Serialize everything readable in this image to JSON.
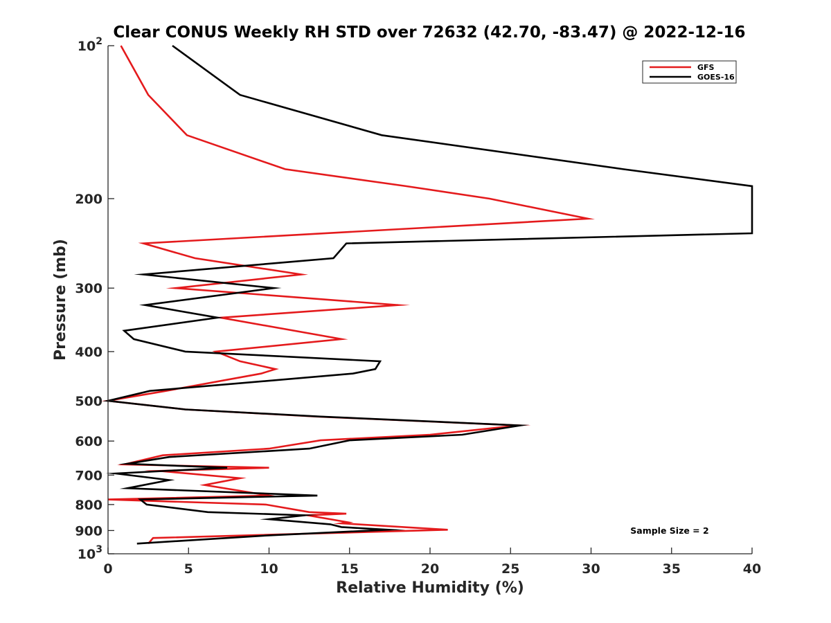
{
  "chart_data": {
    "type": "line",
    "title": "Clear CONUS Weekly RH STD over 72632 (42.70, -83.47) @ 2022-12-16",
    "xlabel": "Relative Humidity (%)",
    "ylabel": "Pressure (mb)",
    "xlim": [
      0,
      40
    ],
    "ylim": [
      100,
      1000
    ],
    "y_scale": "log",
    "y_reversed": true,
    "x_ticks": [
      0,
      5,
      10,
      15,
      20,
      25,
      30,
      35,
      40
    ],
    "y_ticks": [
      {
        "value": 100,
        "base": "10",
        "exp": "2"
      },
      {
        "value": 200,
        "label": "200"
      },
      {
        "value": 300,
        "label": "300"
      },
      {
        "value": 400,
        "label": "400"
      },
      {
        "value": 500,
        "label": "500"
      },
      {
        "value": 600,
        "label": "600"
      },
      {
        "value": 700,
        "label": "700"
      },
      {
        "value": 800,
        "label": "800"
      },
      {
        "value": 900,
        "label": "900"
      },
      {
        "value": 1000,
        "base": "10",
        "exp": "3"
      }
    ],
    "grid": false,
    "legend_position": "top-right",
    "series": [
      {
        "name": "GFS",
        "color": "#e41a1c",
        "points": [
          [
            0.8,
            100
          ],
          [
            2.5,
            125
          ],
          [
            4.9,
            150
          ],
          [
            11,
            175
          ],
          [
            18.5,
            189
          ],
          [
            23.7,
            200
          ],
          [
            29.8,
            219
          ],
          [
            2.2,
            245
          ],
          [
            5.4,
            262
          ],
          [
            12,
            282
          ],
          [
            4.2,
            300
          ],
          [
            18,
            324
          ],
          [
            7,
            343
          ],
          [
            14.5,
            378
          ],
          [
            6.7,
            400
          ],
          [
            8.2,
            418
          ],
          [
            10.4,
            433
          ],
          [
            9.5,
            442
          ],
          [
            3.6,
            478
          ],
          [
            0,
            500
          ],
          [
            4.8,
            520
          ],
          [
            13,
            537
          ],
          [
            25.5,
            559
          ],
          [
            20,
            583
          ],
          [
            13.2,
            598
          ],
          [
            10,
            621
          ],
          [
            3.4,
            640
          ],
          [
            1,
            667
          ],
          [
            10,
            677
          ],
          [
            3.2,
            687
          ],
          [
            8.2,
            710
          ],
          [
            6,
            732
          ],
          [
            10,
            768
          ],
          [
            0,
            782
          ],
          [
            9.8,
            800
          ],
          [
            12.5,
            828
          ],
          [
            14.8,
            834
          ],
          [
            12.4,
            840
          ],
          [
            14.9,
            867
          ],
          [
            14.5,
            871
          ],
          [
            21.1,
            897
          ],
          [
            2.8,
            931
          ],
          [
            2.5,
            955
          ]
        ]
      },
      {
        "name": "GOES-16",
        "color": "#000000",
        "points": [
          [
            4,
            100
          ],
          [
            8.2,
            125
          ],
          [
            17,
            150
          ],
          [
            32,
            175
          ],
          [
            40,
            189
          ],
          [
            40,
            234
          ],
          [
            14.8,
            245
          ],
          [
            14,
            262
          ],
          [
            2.2,
            282
          ],
          [
            10.3,
            300
          ],
          [
            2.3,
            324
          ],
          [
            6.8,
            343
          ],
          [
            1,
            364
          ],
          [
            1.6,
            378
          ],
          [
            4.8,
            400
          ],
          [
            16.9,
            418
          ],
          [
            16.6,
            433
          ],
          [
            15.2,
            442
          ],
          [
            2.6,
            478
          ],
          [
            0,
            500
          ],
          [
            4.8,
            520
          ],
          [
            13.2,
            537
          ],
          [
            25.6,
            559
          ],
          [
            22,
            583
          ],
          [
            15,
            598
          ],
          [
            12.5,
            621
          ],
          [
            3.8,
            645
          ],
          [
            1.2,
            665
          ],
          [
            7.4,
            677
          ],
          [
            0.5,
            695
          ],
          [
            3.8,
            716
          ],
          [
            1.2,
            743
          ],
          [
            13,
            768
          ],
          [
            2,
            782
          ],
          [
            2.4,
            800
          ],
          [
            6.2,
            828
          ],
          [
            12.2,
            840
          ],
          [
            10,
            855
          ],
          [
            13.8,
            875
          ],
          [
            14.5,
            886
          ],
          [
            17.4,
            897
          ],
          [
            10,
            920
          ],
          [
            1.8,
            955
          ]
        ]
      }
    ],
    "annotations": [
      {
        "text": "Sample Size = 2"
      }
    ]
  }
}
